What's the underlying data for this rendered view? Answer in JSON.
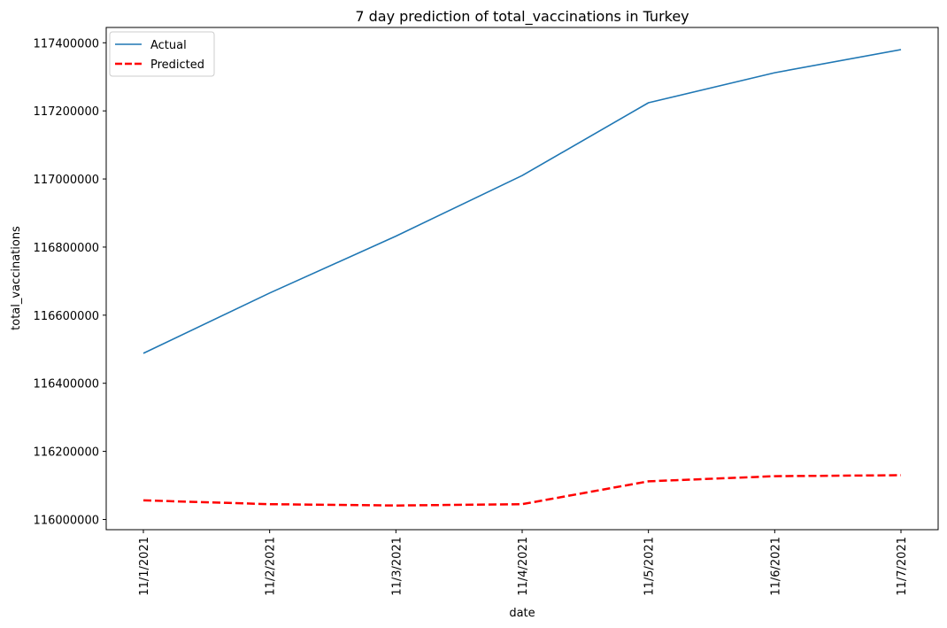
{
  "chart_data": {
    "type": "line",
    "title": "7 day prediction of total_vaccinations in Turkey",
    "xlabel": "date",
    "ylabel": "total_vaccinations",
    "categories": [
      "11/1/2021",
      "11/2/2021",
      "11/3/2021",
      "11/4/2021",
      "11/5/2021",
      "11/6/2021",
      "11/7/2021"
    ],
    "yticks": [
      116000000,
      116200000,
      116400000,
      116600000,
      116800000,
      117000000,
      117200000,
      117400000
    ],
    "ylim": [
      115970000,
      117445000
    ],
    "legend": {
      "position": "upper-left"
    },
    "grid": false,
    "series": [
      {
        "name": "Actual",
        "color": "#1f77b4",
        "style": "solid",
        "values": [
          116488000,
          116665000,
          116832000,
          117010000,
          117224000,
          117312000,
          117380000
        ]
      },
      {
        "name": "Predicted",
        "color": "#ff0000",
        "style": "dashed",
        "values": [
          116056000,
          116045000,
          116041000,
          116045000,
          116112000,
          116127000,
          116130000
        ]
      }
    ]
  }
}
